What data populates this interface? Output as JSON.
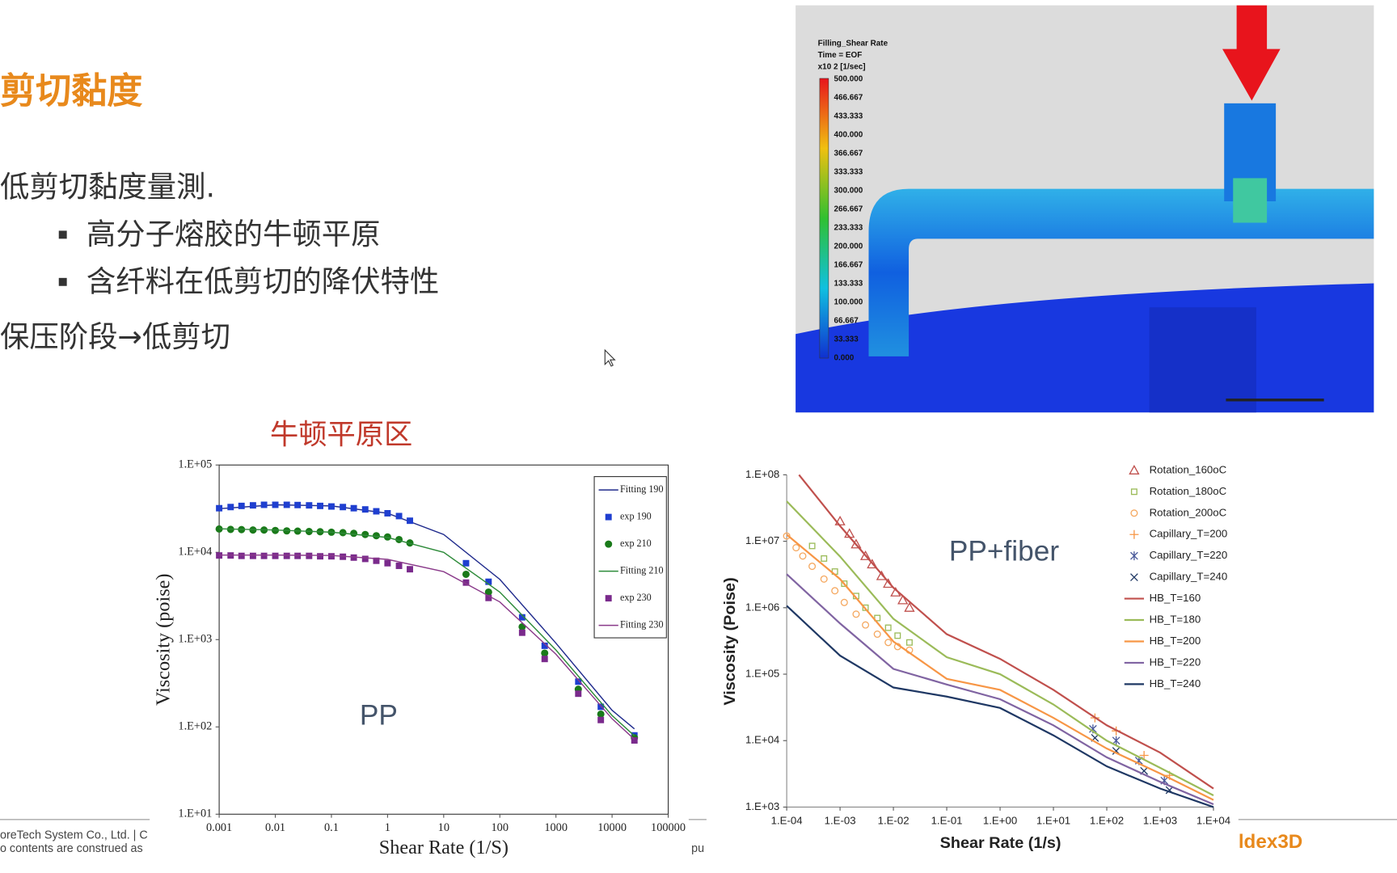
{
  "slide": {
    "title": "剪切黏度",
    "bullets": [
      "低剪切黏度量測.",
      "高分子熔胶的牛顿平原",
      "含纤料在低剪切的降伏特性",
      "保压阶段→低剪切"
    ],
    "footer": [
      "oreTech System Co., Ltd.  |  C",
      "o contents are construed as",
      "pu"
    ],
    "logo": "ldex3D"
  },
  "sim": {
    "legend_title": [
      "Filling_Shear Rate",
      "Time = EOF",
      "x10 2   [1/sec]"
    ],
    "scale": [
      "500.000",
      "466.667",
      "433.333",
      "400.000",
      "366.667",
      "333.333",
      "300.000",
      "266.667",
      "233.333",
      "200.000",
      "166.667",
      "133.333",
      "100.000",
      "66.667",
      "33.333",
      "0.000"
    ]
  },
  "chart_data": [
    {
      "type": "line",
      "title": "牛顿平原区",
      "annotation": "PP",
      "x_label": "Shear Rate (1/S)",
      "y_label": "Viscosity (poise)",
      "log_x": true,
      "log_y": true,
      "xlim": [
        0.001,
        100000
      ],
      "ylim": [
        10,
        100000
      ],
      "xticks": [
        0.001,
        0.01,
        0.1,
        1,
        10,
        100,
        1000,
        10000,
        100000
      ],
      "yticks": [
        {
          "value": 10,
          "label": "1.E+01"
        },
        {
          "value": 100,
          "label": "1.E+02"
        },
        {
          "value": 1000,
          "label": "1.E+03"
        },
        {
          "value": 10000,
          "label": "1.E+04"
        },
        {
          "value": 100000,
          "label": "1.E+05"
        }
      ],
      "legend": "upper right",
      "series": [
        {
          "name": "Fitting 190",
          "color": "#1f2a8c",
          "mode": "line",
          "x": [
            0.001,
            0.01,
            0.1,
            1,
            10,
            100,
            1000,
            10000,
            25000
          ],
          "values": [
            31600,
            35000,
            34000,
            28000,
            16000,
            4900,
            910,
            155,
            95
          ]
        },
        {
          "name": "exp 190",
          "color": "#1f3fd0",
          "mode": "markers",
          "marker": "square",
          "filled": true,
          "x": [
            0.001,
            0.0016,
            0.0025,
            0.004,
            0.0063,
            0.01,
            0.016,
            0.025,
            0.04,
            0.063,
            0.1,
            0.16,
            0.25,
            0.4,
            0.63,
            1,
            1.6,
            2.5,
            25,
            63,
            250,
            630,
            2500,
            6300,
            25000
          ],
          "values": [
            32000,
            33000,
            34000,
            34500,
            35000,
            35000,
            35000,
            34800,
            34500,
            34000,
            33500,
            33000,
            32000,
            31000,
            29500,
            28000,
            26000,
            23000,
            7500,
            4600,
            1800,
            850,
            330,
            170,
            80
          ]
        },
        {
          "name": "exp 210",
          "color": "#1a7a1a",
          "mode": "markers",
          "marker": "circle",
          "filled": true,
          "x": [
            0.001,
            0.0016,
            0.0025,
            0.004,
            0.0063,
            0.01,
            0.016,
            0.025,
            0.04,
            0.063,
            0.1,
            0.16,
            0.25,
            0.4,
            0.63,
            1,
            1.6,
            2.5,
            25,
            63,
            250,
            630,
            2500,
            6300,
            25000
          ],
          "values": [
            18500,
            18300,
            18200,
            18000,
            18000,
            17800,
            17600,
            17500,
            17300,
            17200,
            17000,
            16800,
            16500,
            16000,
            15500,
            15000,
            14000,
            12800,
            5600,
            3500,
            1400,
            700,
            270,
            140,
            75
          ]
        },
        {
          "name": "Fitting 210",
          "color": "#2e8b3a",
          "mode": "line",
          "x": [
            0.001,
            0.01,
            0.1,
            1,
            10,
            100,
            1000,
            10000,
            25000
          ],
          "values": [
            18600,
            18000,
            17000,
            14800,
            10000,
            3500,
            760,
            135,
            79
          ]
        },
        {
          "name": "exp 230",
          "color": "#7a2a8c",
          "mode": "markers",
          "marker": "square",
          "filled": true,
          "x": [
            0.001,
            0.0016,
            0.0025,
            0.004,
            0.0063,
            0.01,
            0.016,
            0.025,
            0.04,
            0.063,
            0.1,
            0.16,
            0.25,
            0.4,
            0.63,
            1,
            1.6,
            2.5,
            25,
            63,
            250,
            630,
            2500,
            6300,
            25000
          ],
          "values": [
            9200,
            9200,
            9100,
            9100,
            9100,
            9100,
            9100,
            9100,
            9100,
            9000,
            9000,
            8900,
            8700,
            8400,
            8000,
            7500,
            7000,
            6400,
            4500,
            3000,
            1200,
            600,
            240,
            120,
            70
          ]
        },
        {
          "name": "Fitting 230",
          "color": "#8a3a8a",
          "mode": "line",
          "x": [
            0.001,
            0.01,
            0.1,
            1,
            10,
            100,
            1000,
            10000,
            25000
          ],
          "values": [
            9300,
            9300,
            9200,
            8300,
            6000,
            2700,
            680,
            124,
            72
          ]
        }
      ]
    },
    {
      "type": "line",
      "annotation": "PP+fiber",
      "x_label": "Shear Rate (1/s)",
      "y_label": "Viscosity (Poise)",
      "log_x": true,
      "log_y": true,
      "xlim": [
        0.0001,
        10000
      ],
      "ylim": [
        1000,
        100000000
      ],
      "xticks": [
        {
          "value": 0.0001,
          "label": "1.E-04"
        },
        {
          "value": 0.001,
          "label": "1.E-03"
        },
        {
          "value": 0.01,
          "label": "1.E-02"
        },
        {
          "value": 0.1,
          "label": "1.E-01"
        },
        {
          "value": 1,
          "label": "1.E+00"
        },
        {
          "value": 10,
          "label": "1.E+01"
        },
        {
          "value": 100,
          "label": "1.E+02"
        },
        {
          "value": 1000,
          "label": "1.E+03"
        },
        {
          "value": 10000,
          "label": "1.E+04"
        }
      ],
      "yticks": [
        {
          "value": 1000,
          "label": "1.E+03"
        },
        {
          "value": 10000,
          "label": "1.E+04"
        },
        {
          "value": 100000,
          "label": "1.E+05"
        },
        {
          "value": 1000000,
          "label": "1.E+06"
        },
        {
          "value": 10000000,
          "label": "1.E+07"
        },
        {
          "value": 100000000,
          "label": "1.E+08"
        }
      ],
      "legend": "upper right",
      "series": [
        {
          "name": "Rotation_160oC",
          "color": "#c0504d",
          "mode": "markers",
          "marker": "triangle",
          "x": [
            0.001,
            0.0015,
            0.002,
            0.003,
            0.004,
            0.006,
            0.008,
            0.011,
            0.015,
            0.02
          ],
          "values": [
            20000000,
            13000000,
            9000000,
            6000000,
            4500000,
            3000000,
            2300000,
            1700000,
            1300000,
            1000000
          ]
        },
        {
          "name": "Rotation_180oC",
          "color": "#9bbb59",
          "mode": "markers",
          "marker": "square",
          "x": [
            0.0003,
            0.0005,
            0.0008,
            0.0012,
            0.002,
            0.003,
            0.005,
            0.008,
            0.012,
            0.02
          ],
          "values": [
            8500000,
            5500000,
            3500000,
            2300000,
            1500000,
            1000000,
            700000,
            500000,
            380000,
            300000
          ]
        },
        {
          "name": "Rotation_200oC",
          "color": "#f5a860",
          "mode": "markers",
          "marker": "circle",
          "x": [
            0.0001,
            0.00015,
            0.0002,
            0.0003,
            0.0005,
            0.0008,
            0.0012,
            0.002,
            0.003,
            0.005,
            0.008,
            0.012,
            0.02
          ],
          "values": [
            12000000,
            8000000,
            6000000,
            4200000,
            2700000,
            1800000,
            1200000,
            800000,
            550000,
            400000,
            300000,
            260000,
            230000
          ]
        },
        {
          "name": "Capillary_T=200",
          "color": "#f79646",
          "mode": "markers",
          "marker": "plus",
          "x": [
            60,
            150,
            500,
            1500
          ],
          "values": [
            22000,
            14000,
            6000,
            3000
          ]
        },
        {
          "name": "Capillary_T=220",
          "color": "#4a5a9a",
          "mode": "markers",
          "marker": "star",
          "x": [
            55,
            150,
            400,
            1200
          ],
          "values": [
            15000,
            10000,
            5000,
            2500
          ]
        },
        {
          "name": "Capillary_T=240",
          "color": "#1f3864",
          "mode": "markers",
          "marker": "x",
          "x": [
            60,
            150,
            500,
            1500
          ],
          "values": [
            11000,
            7000,
            3500,
            1800
          ]
        },
        {
          "name": "HB_T=160",
          "color": "#c0504d",
          "mode": "line",
          "x": [
            0.00017,
            0.001,
            0.01,
            0.1,
            1,
            10,
            100,
            1000,
            10000
          ],
          "values": [
            100000000,
            17000000,
            2000000,
            400000,
            170000,
            58000,
            17000,
            6600,
            1900
          ]
        },
        {
          "name": "HB_T=180",
          "color": "#9bbb59",
          "mode": "line",
          "x": [
            0.0001,
            0.001,
            0.01,
            0.1,
            1,
            10,
            100,
            1000,
            10000
          ],
          "values": [
            40000000,
            5900000,
            680000,
            180000,
            100000,
            35000,
            10000,
            3900,
            1500
          ]
        },
        {
          "name": "HB_T=200",
          "color": "#f79646",
          "mode": "line",
          "x": [
            0.0001,
            0.001,
            0.01,
            0.1,
            1,
            10,
            100,
            1000,
            10000
          ],
          "values": [
            12600000,
            2700000,
            310000,
            85000,
            58000,
            22000,
            7600,
            3200,
            1280
          ]
        },
        {
          "name": "HB_T=220",
          "color": "#8064a2",
          "mode": "line",
          "x": [
            0.0001,
            0.001,
            0.01,
            0.1,
            1,
            10,
            100,
            1000,
            10000
          ],
          "values": [
            3200000,
            580000,
            120000,
            70000,
            42000,
            17000,
            5600,
            2400,
            1100
          ]
        },
        {
          "name": "HB_T=240",
          "color": "#1f3864",
          "mode": "line",
          "x": [
            0.0001,
            0.001,
            0.01,
            0.1,
            1,
            10,
            100,
            1000,
            10000
          ],
          "values": [
            1070000,
            190000,
            63000,
            46000,
            31000,
            12000,
            4100,
            1900,
            1000
          ]
        }
      ]
    }
  ]
}
